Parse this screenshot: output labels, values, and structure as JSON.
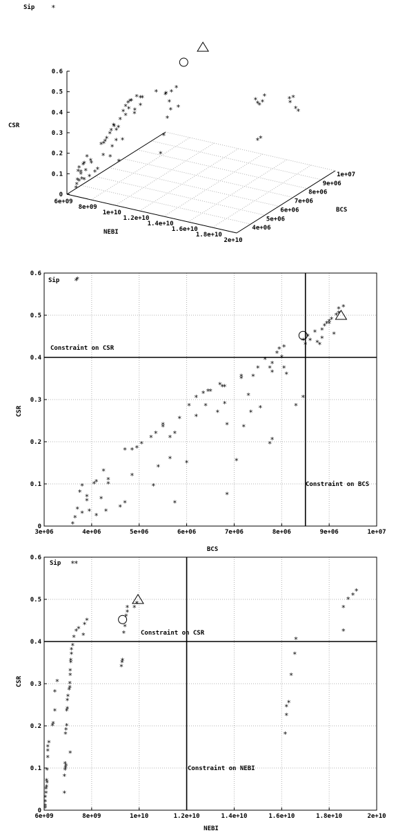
{
  "chart_data": [
    {
      "type": "scatter3d",
      "legend": {
        "label": "Sip",
        "marker": "*",
        "placement": "top-left"
      },
      "axes": {
        "x": {
          "label": "NEBI",
          "ticks": [
            "6e+09",
            "8e+09",
            "1e+10",
            "1.2e+10",
            "1.4e+10",
            "1.6e+10",
            "1.8e+10",
            "2e+10"
          ],
          "range": [
            6000000000.0,
            20000000000.0
          ]
        },
        "y": {
          "label": "BCS",
          "ticks": [
            "4e+06",
            "5e+06",
            "6e+06",
            "7e+06",
            "8e+06",
            "9e+06",
            "1e+07"
          ],
          "range": [
            3000000.0,
            10000000.0
          ]
        },
        "z": {
          "label": "CSR",
          "ticks": [
            "0",
            "0.1",
            "0.2",
            "0.3",
            "0.4",
            "0.5",
            "0.6"
          ],
          "range": [
            0,
            0.6
          ]
        }
      },
      "highlights": [
        {
          "shape": "circle"
        },
        {
          "shape": "triangle"
        }
      ]
    },
    {
      "type": "scatter",
      "title": "",
      "xlabel": "BCS",
      "ylabel": "CSR",
      "xlim": [
        3000000,
        10000000
      ],
      "ylim": [
        0,
        0.6
      ],
      "xticks": [
        "3e+06",
        "4e+06",
        "5e+06",
        "6e+06",
        "7e+06",
        "8e+06",
        "9e+06",
        "1e+07"
      ],
      "yticks": [
        "0",
        "0.1",
        "0.2",
        "0.3",
        "0.4",
        "0.5",
        "0.6"
      ],
      "grid": true,
      "legend": {
        "label": "Sip",
        "marker": "*",
        "placement": "top-left"
      },
      "constraints": [
        {
          "label": "Constraint on CSR",
          "axis": "y",
          "value": 0.4
        },
        {
          "label": "Constraint on BCS",
          "axis": "x",
          "value": 8500000
        }
      ],
      "highlights": [
        {
          "shape": "circle",
          "x": 8450000,
          "y": 0.452
        },
        {
          "shape": "triangle",
          "x": 9250000,
          "y": 0.5
        }
      ],
      "points": [
        [
          3600000,
          0.005
        ],
        [
          3650000,
          0.02
        ],
        [
          3700000,
          0.04
        ],
        [
          3750000,
          0.08
        ],
        [
          3800000,
          0.095
        ],
        [
          3800000,
          0.03
        ],
        [
          3900000,
          0.07
        ],
        [
          3900000,
          0.06
        ],
        [
          3950000,
          0.035
        ],
        [
          4050000,
          0.1
        ],
        [
          4100000,
          0.105
        ],
        [
          4100000,
          0.025
        ],
        [
          4200000,
          0.065
        ],
        [
          4250000,
          0.13
        ],
        [
          4300000,
          0.035
        ],
        [
          4350000,
          0.11
        ],
        [
          4350000,
          0.1
        ],
        [
          4600000,
          0.045
        ],
        [
          4700000,
          0.055
        ],
        [
          4700000,
          0.18
        ],
        [
          4850000,
          0.12
        ],
        [
          4850000,
          0.18
        ],
        [
          4950000,
          0.185
        ],
        [
          5050000,
          0.195
        ],
        [
          5250000,
          0.21
        ],
        [
          5300000,
          0.095
        ],
        [
          5350000,
          0.22
        ],
        [
          5400000,
          0.14
        ],
        [
          5500000,
          0.24
        ],
        [
          5500000,
          0.235
        ],
        [
          5650000,
          0.16
        ],
        [
          5650000,
          0.21
        ],
        [
          5750000,
          0.22
        ],
        [
          5750000,
          0.055
        ],
        [
          5850000,
          0.255
        ],
        [
          6000000,
          0.15
        ],
        [
          6050000,
          0.285
        ],
        [
          6200000,
          0.305
        ],
        [
          6200000,
          0.26
        ],
        [
          6350000,
          0.315
        ],
        [
          6400000,
          0.285
        ],
        [
          6450000,
          0.32
        ],
        [
          6500000,
          0.32
        ],
        [
          6650000,
          0.27
        ],
        [
          6700000,
          0.335
        ],
        [
          6750000,
          0.33
        ],
        [
          6800000,
          0.33
        ],
        [
          6800000,
          0.29
        ],
        [
          6850000,
          0.24
        ],
        [
          6850000,
          0.075
        ],
        [
          7050000,
          0.155
        ],
        [
          7150000,
          0.35
        ],
        [
          7150000,
          0.355
        ],
        [
          7200000,
          0.235
        ],
        [
          7300000,
          0.31
        ],
        [
          7350000,
          0.27
        ],
        [
          7400000,
          0.355
        ],
        [
          7500000,
          0.375
        ],
        [
          7550000,
          0.28
        ],
        [
          7650000,
          0.395
        ],
        [
          7750000,
          0.375
        ],
        [
          7750000,
          0.195
        ],
        [
          7800000,
          0.365
        ],
        [
          7800000,
          0.205
        ],
        [
          7800000,
          0.385
        ],
        [
          7900000,
          0.41
        ],
        [
          7950000,
          0.42
        ],
        [
          8000000,
          0.4
        ],
        [
          8050000,
          0.425
        ],
        [
          8050000,
          0.375
        ],
        [
          8100000,
          0.36
        ],
        [
          8300000,
          0.285
        ],
        [
          8450000,
          0.305
        ],
        [
          8450000,
          0.44
        ],
        [
          8500000,
          0.43
        ],
        [
          8550000,
          0.45
        ],
        [
          8600000,
          0.44
        ],
        [
          8700000,
          0.46
        ],
        [
          8750000,
          0.435
        ],
        [
          8800000,
          0.43
        ],
        [
          8850000,
          0.445
        ],
        [
          8850000,
          0.465
        ],
        [
          8900000,
          0.475
        ],
        [
          8950000,
          0.48
        ],
        [
          9000000,
          0.48
        ],
        [
          9000000,
          0.485
        ],
        [
          9050000,
          0.49
        ],
        [
          9100000,
          0.455
        ],
        [
          9150000,
          0.5
        ],
        [
          9200000,
          0.505
        ],
        [
          9200000,
          0.515
        ],
        [
          9300000,
          0.52
        ],
        [
          3700000,
          0.585
        ]
      ]
    },
    {
      "type": "scatter",
      "title": "",
      "xlabel": "NEBI",
      "ylabel": "CSR",
      "xlim": [
        6000000000,
        20000000000
      ],
      "ylim": [
        0,
        0.6
      ],
      "xticks": [
        "6e+09",
        "8e+09",
        "1e+10",
        "1.2e+10",
        "1.4e+10",
        "1.6e+10",
        "1.8e+10",
        "2e+10"
      ],
      "yticks": [
        "0",
        "0.1",
        "0.2",
        "0.3",
        "0.4",
        "0.5",
        "0.6"
      ],
      "grid": true,
      "legend": {
        "label": "Sip",
        "marker": "*",
        "placement": "top-left"
      },
      "constraints": [
        {
          "label": "Constraint on CSR",
          "axis": "y",
          "value": 0.4
        },
        {
          "label": "Constraint on NEBI",
          "axis": "x",
          "value": 12000000000
        }
      ],
      "highlights": [
        {
          "shape": "circle",
          "x": 9300000000,
          "y": 0.452
        },
        {
          "shape": "triangle",
          "x": 9950000000,
          "y": 0.5
        }
      ],
      "points": [
        [
          6050000000,
          0.005
        ],
        [
          6050000000,
          0.01
        ],
        [
          6050000000,
          0.02
        ],
        [
          6050000000,
          0.03
        ],
        [
          6080000000,
          0.04
        ],
        [
          6080000000,
          0.05
        ],
        [
          6100000000,
          0.055
        ],
        [
          6100000000,
          0.07
        ],
        [
          6120000000,
          0.065
        ],
        [
          6120000000,
          0.095
        ],
        [
          6150000000,
          0.125
        ],
        [
          6150000000,
          0.14
        ],
        [
          6150000000,
          0.15
        ],
        [
          6200000000,
          0.16
        ],
        [
          6350000000,
          0.2
        ],
        [
          6380000000,
          0.205
        ],
        [
          6450000000,
          0.235
        ],
        [
          6450000000,
          0.28
        ],
        [
          6550000000,
          0.305
        ],
        [
          6850000000,
          0.04
        ],
        [
          6850000000,
          0.08
        ],
        [
          6880000000,
          0.095
        ],
        [
          6880000000,
          0.11
        ],
        [
          6900000000,
          0.1
        ],
        [
          6920000000,
          0.105
        ],
        [
          6900000000,
          0.18
        ],
        [
          6920000000,
          0.19
        ],
        [
          6950000000,
          0.2
        ],
        [
          6950000000,
          0.235
        ],
        [
          6980000000,
          0.24
        ],
        [
          6980000000,
          0.26
        ],
        [
          7000000000,
          0.27
        ],
        [
          7050000000,
          0.285
        ],
        [
          7080000000,
          0.29
        ],
        [
          7080000000,
          0.3
        ],
        [
          7100000000,
          0.32
        ],
        [
          7100000000,
          0.33
        ],
        [
          7120000000,
          0.35
        ],
        [
          7120000000,
          0.355
        ],
        [
          7150000000,
          0.37
        ],
        [
          7150000000,
          0.38
        ],
        [
          7200000000,
          0.39
        ],
        [
          7250000000,
          0.41
        ],
        [
          7350000000,
          0.425
        ],
        [
          7450000000,
          0.43
        ],
        [
          7700000000,
          0.44
        ],
        [
          7800000000,
          0.45
        ],
        [
          7650000000,
          0.415
        ],
        [
          7100000000,
          0.135
        ],
        [
          9250000000,
          0.34
        ],
        [
          9280000000,
          0.35
        ],
        [
          9300000000,
          0.355
        ],
        [
          9350000000,
          0.42
        ],
        [
          9400000000,
          0.435
        ],
        [
          9450000000,
          0.46
        ],
        [
          9500000000,
          0.47
        ],
        [
          9500000000,
          0.48
        ],
        [
          9800000000,
          0.48
        ],
        [
          9900000000,
          0.49
        ],
        [
          16150000000,
          0.18
        ],
        [
          16200000000,
          0.225
        ],
        [
          16200000000,
          0.245
        ],
        [
          16300000000,
          0.255
        ],
        [
          16400000000,
          0.32
        ],
        [
          16550000000,
          0.37
        ],
        [
          16600000000,
          0.405
        ],
        [
          18600000000,
          0.425
        ],
        [
          18600000000,
          0.48
        ],
        [
          18800000000,
          0.5
        ],
        [
          19000000000,
          0.51
        ],
        [
          19150000000,
          0.52
        ],
        [
          7200000000,
          0.585
        ]
      ]
    }
  ]
}
